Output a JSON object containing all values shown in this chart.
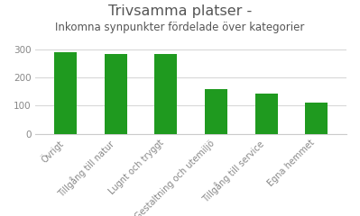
{
  "title_line1": "Trivsamma platser -",
  "title_line2": "Inkomna synpunkter fördelade över kategorier",
  "categories": [
    "Övrigt",
    "Tillgång till natur",
    "Lugnt och tryggt",
    "Gestaltning och utemiljö",
    "Tillgång till service",
    "Egna hemmet"
  ],
  "values": [
    290,
    283,
    284,
    158,
    143,
    110
  ],
  "bar_color": "#1f9a1f",
  "ylim": [
    0,
    320
  ],
  "yticks": [
    0,
    100,
    200,
    300
  ],
  "background_color": "#ffffff",
  "grid_color": "#d8d8d8",
  "title_fontsize": 11.5,
  "subtitle_fontsize": 8.5,
  "tick_label_fontsize": 7,
  "ytick_fontsize": 7.5,
  "title_color": "#555555",
  "tick_color": "#888888"
}
